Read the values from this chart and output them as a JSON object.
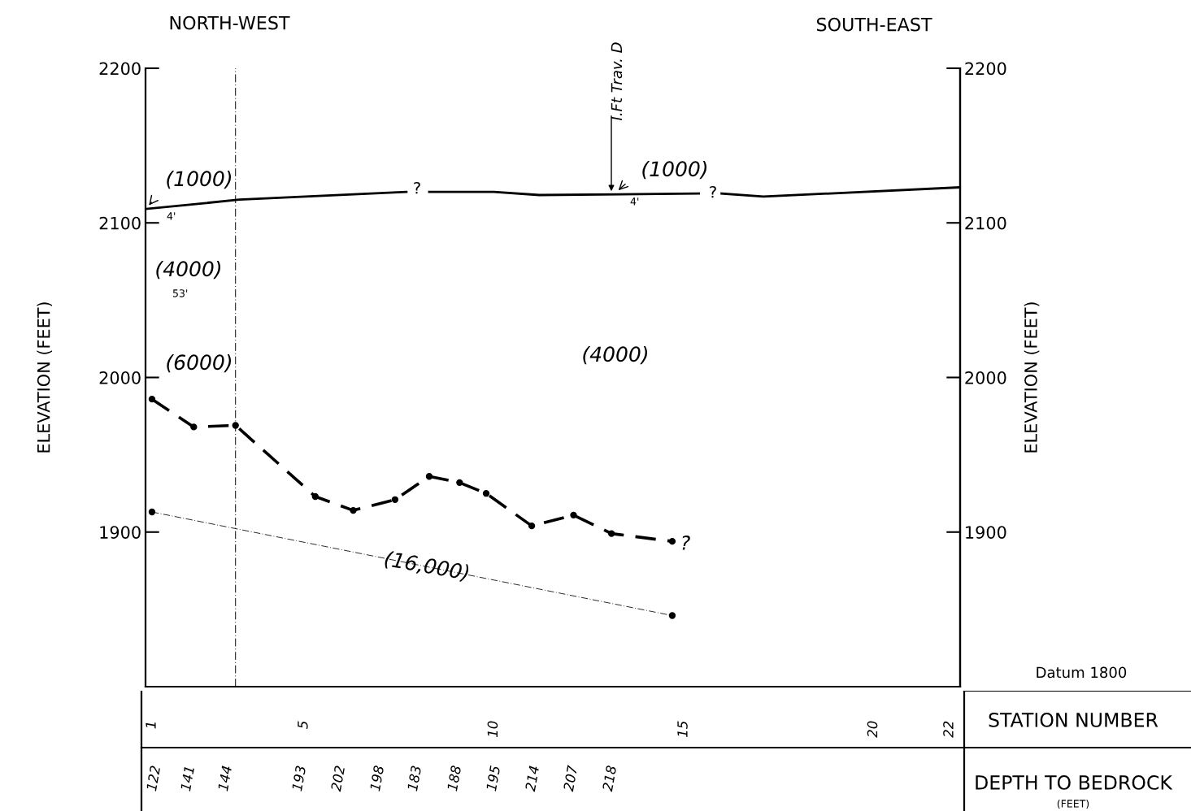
{
  "chart_data": {
    "type": "line",
    "ylabel": "ELEVATION (FEET)",
    "y2label": "ELEVATION (FEET)",
    "xlim": [
      0.83,
      22.28
    ],
    "xticks": [
      1,
      5,
      10,
      15,
      20,
      22
    ],
    "ylim": [
      1800,
      2200
    ],
    "yticks": [
      1900,
      2000,
      2100,
      2200
    ],
    "y2lim": [
      1800,
      2200
    ],
    "y2ticks": [
      1900,
      2000,
      2100,
      2200
    ],
    "grid": false,
    "legend": false,
    "series": [
      {
        "color": "#000000",
        "line_style": "solid",
        "marker": "none",
        "x": [
          0.85,
          3.3,
          7.7,
          8.0,
          8.3,
          10.0,
          11.2,
          15.4,
          15.7,
          16.0,
          17.1,
          22.28
        ],
        "values": [
          2109,
          2115,
          2120,
          null,
          2120,
          2120,
          2118,
          2119,
          null,
          2119,
          2117,
          2123
        ]
      },
      {
        "color": "#000000",
        "line_style": "dashed",
        "marker": "circle",
        "x": [
          1.0,
          2.1,
          3.2,
          5.3,
          6.3,
          7.4,
          8.3,
          9.1,
          9.8,
          11.0,
          12.1,
          13.1,
          14.7
        ],
        "values": [
          1986,
          1968,
          1969,
          1923,
          1914,
          1921,
          1936,
          1932,
          1925,
          1904,
          1911,
          1899,
          1894
        ]
      },
      {
        "color": "#000000",
        "line_style": "dotted",
        "marker": "circle",
        "x": [
          1.0,
          14.7
        ],
        "values": [
          1913,
          1846
        ]
      }
    ],
    "ref_lines": [
      {
        "axis": "x",
        "value": 3.2,
        "color": "#000000",
        "line_style": "dotted"
      }
    ],
    "annotations": [
      "NORTH-WEST",
      "SOUTH-EAST",
      {
        "text": "(1000)",
        "x": 0.85,
        "y": 2109
      },
      {
        "text": "(1000)",
        "x": 13.2,
        "y": 2119
      },
      "I.Ft Trav. D",
      "4'",
      "4'",
      "(4000)",
      "53'",
      "(6000)",
      "(4000)",
      "?",
      "?",
      "?",
      "(16,000)",
      "Datum 1800",
      "STATION NUMBER",
      "DEPTH TO BEDROCK",
      "(FEET)",
      "122",
      "141",
      "144",
      "193",
      "202",
      "198",
      "183",
      "188",
      "195",
      "214",
      "207",
      "218"
    ]
  }
}
